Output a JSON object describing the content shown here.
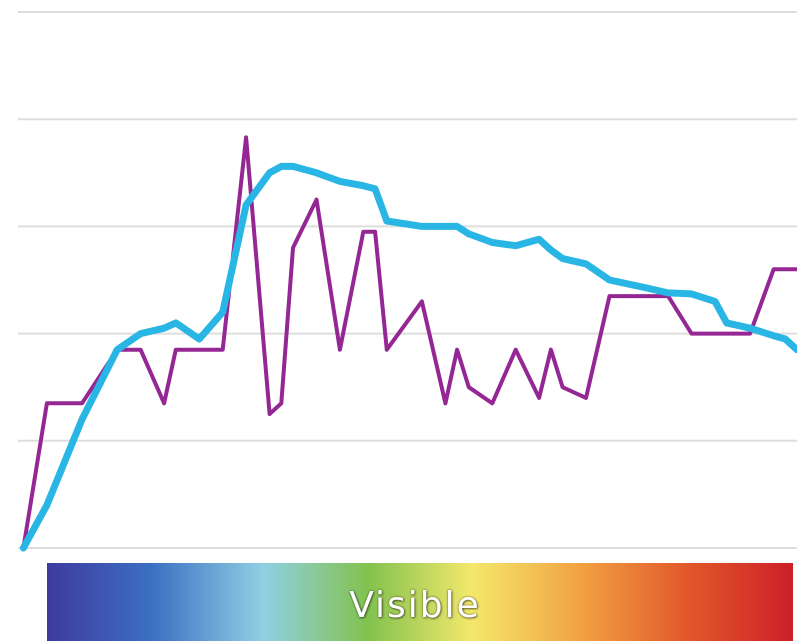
{
  "chart_data": {
    "type": "line",
    "grid": true,
    "legend": "none",
    "title": "",
    "xlabel": "",
    "ylabel": "",
    "ylim": [
      0,
      5
    ],
    "xlim": [
      0,
      68
    ],
    "x": [
      2,
      4,
      7,
      10,
      12,
      14,
      15,
      17,
      19,
      21,
      23,
      24,
      25,
      27,
      29,
      31,
      32,
      33,
      36,
      38,
      39,
      40,
      42,
      44,
      46,
      47,
      48,
      50,
      52,
      55,
      57,
      59,
      61,
      62,
      64,
      66,
      67,
      68
    ],
    "series": [
      {
        "color": "#952795",
        "values": [
          0.0,
          1.35,
          1.35,
          1.85,
          1.85,
          1.35,
          1.85,
          1.85,
          1.85,
          3.83,
          1.25,
          1.35,
          2.8,
          3.25,
          1.85,
          2.95,
          2.95,
          1.85,
          2.3,
          1.35,
          1.85,
          1.5,
          1.35,
          1.85,
          1.4,
          1.85,
          1.5,
          1.4,
          2.35,
          2.35,
          2.35,
          2.0,
          2.0,
          2.0,
          2.0,
          2.6,
          2.6,
          2.6
        ]
      },
      {
        "color": "#2ab6e4",
        "values": [
          0.0,
          0.4,
          1.2,
          1.85,
          2.0,
          2.05,
          2.1,
          1.95,
          2.2,
          3.2,
          3.5,
          3.56,
          3.56,
          3.5,
          3.42,
          3.38,
          3.35,
          3.05,
          3.0,
          3.0,
          3.0,
          2.93,
          2.85,
          2.82,
          2.88,
          2.78,
          2.7,
          2.65,
          2.5,
          2.43,
          2.38,
          2.37,
          2.3,
          2.1,
          2.05,
          1.98,
          1.95,
          1.85
        ]
      }
    ]
  },
  "spectrum": {
    "label": "Visible",
    "colors": [
      "#3f3a9e",
      "#3b6fc2",
      "#8fd0e4",
      "#82c24e",
      "#f4e86c",
      "#f2a443",
      "#e2572b",
      "#cc2027"
    ]
  }
}
